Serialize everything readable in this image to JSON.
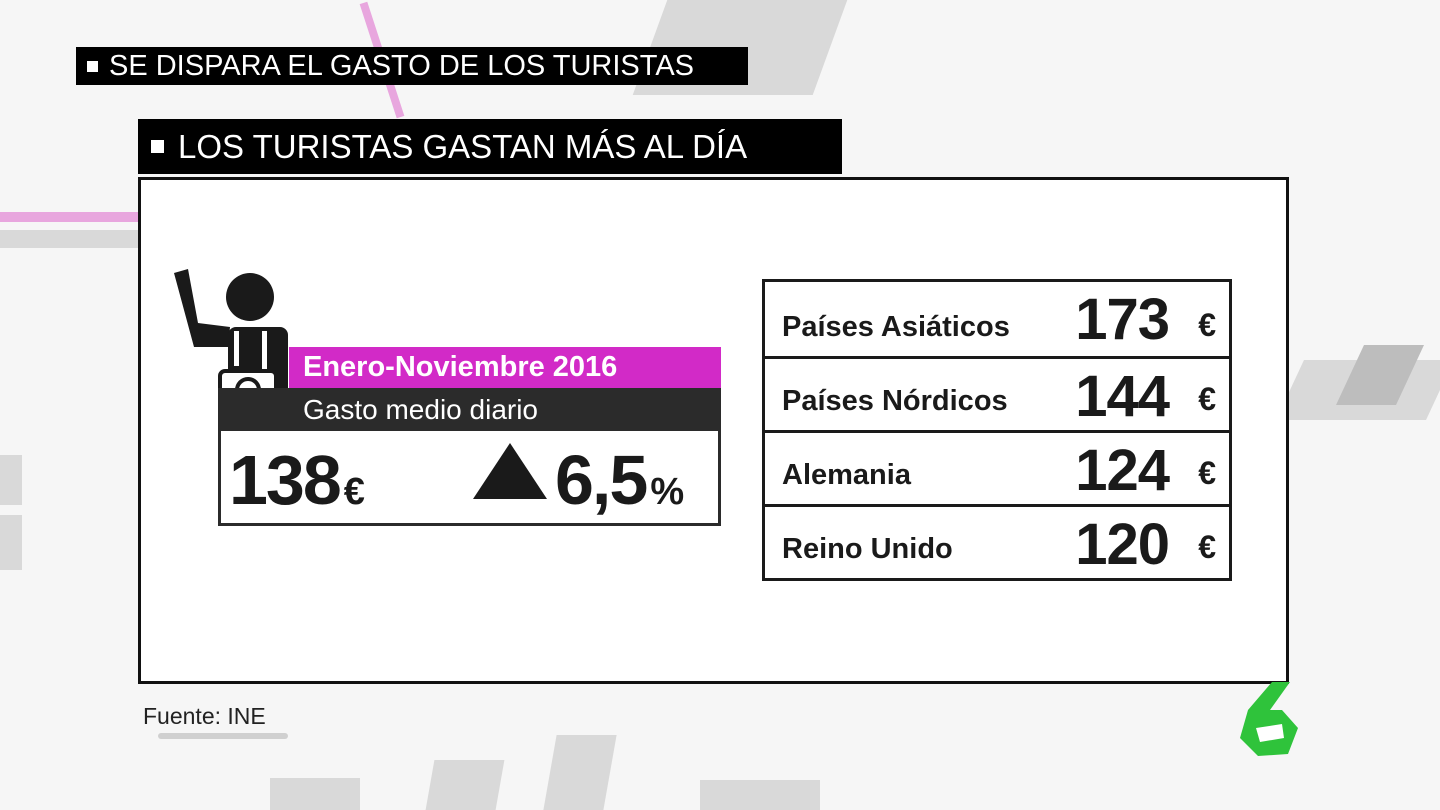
{
  "header": {
    "title": "SE DISPARA EL GASTO DE LOS TURISTAS",
    "subtitle": "LOS TURISTAS GASTAN MÁS AL DÍA"
  },
  "summary": {
    "period": "Enero-Noviembre 2016",
    "metric": "Gasto medio diario",
    "average_value": "138",
    "average_unit": "€",
    "change_value": "6,5",
    "change_unit": "%",
    "change_direction": "up"
  },
  "countries": [
    {
      "name": "Países Asiáticos",
      "value": "173",
      "unit": "€"
    },
    {
      "name": "Países Nórdicos",
      "value": "144",
      "unit": "€"
    },
    {
      "name": "Alemania",
      "value": "124",
      "unit": "€"
    },
    {
      "name": "Reino Unido",
      "value": "120",
      "unit": "€"
    }
  ],
  "footer": {
    "source": "Fuente: INE"
  },
  "icons": {
    "tourist": "tourist-camera-icon",
    "arrow": "triangle-up-icon",
    "logo": "channel-six-logo"
  },
  "colors": {
    "accent": "#d22ac7",
    "dark": "#2b2b2b",
    "logo_green": "#2fc33b"
  }
}
